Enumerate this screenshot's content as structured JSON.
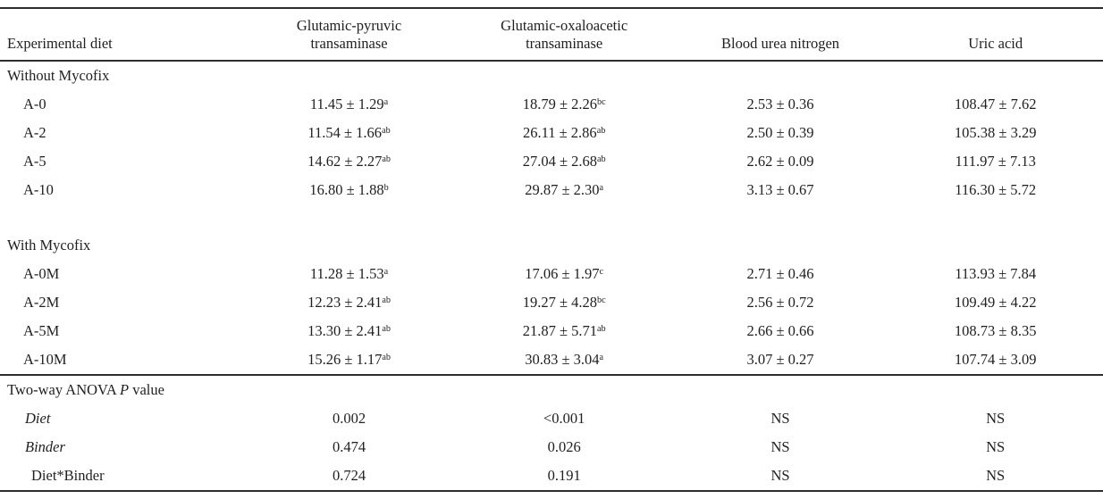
{
  "colors": {
    "background": "#ffffff",
    "text": "#1f1f1f",
    "rule": "#2d2d2d"
  },
  "table": {
    "columns": [
      {
        "id": "diet",
        "lines": [
          "Experimental diet"
        ]
      },
      {
        "id": "gpt",
        "lines": [
          "Glutamic-pyruvic",
          "transaminase"
        ]
      },
      {
        "id": "got",
        "lines": [
          "Glutamic-oxaloacetic",
          "transaminase"
        ]
      },
      {
        "id": "bun",
        "lines": [
          "Blood urea nitrogen"
        ]
      },
      {
        "id": "uric",
        "lines": [
          "Uric acid"
        ]
      }
    ],
    "sections": [
      {
        "label": "Without Mycofix",
        "rows": [
          {
            "diet": "A-0",
            "cells": [
              {
                "value": "11.45 ± 1.29",
                "sup": "a"
              },
              {
                "value": "18.79 ± 2.26",
                "sup": "bc"
              },
              {
                "value": "2.53 ± 0.36",
                "sup": ""
              },
              {
                "value": "108.47 ± 7.62",
                "sup": ""
              }
            ]
          },
          {
            "diet": "A-2",
            "cells": [
              {
                "value": "11.54 ± 1.66",
                "sup": "ab"
              },
              {
                "value": "26.11 ± 2.86",
                "sup": "ab"
              },
              {
                "value": "2.50 ± 0.39",
                "sup": ""
              },
              {
                "value": "105.38 ± 3.29",
                "sup": ""
              }
            ]
          },
          {
            "diet": "A-5",
            "cells": [
              {
                "value": "14.62 ± 2.27",
                "sup": "ab"
              },
              {
                "value": "27.04 ± 2.68",
                "sup": "ab"
              },
              {
                "value": "2.62 ± 0.09",
                "sup": ""
              },
              {
                "value": "111.97 ± 7.13",
                "sup": ""
              }
            ]
          },
          {
            "diet": "A-10",
            "cells": [
              {
                "value": "16.80 ± 1.88",
                "sup": "b"
              },
              {
                "value": "29.87 ± 2.30",
                "sup": "a"
              },
              {
                "value": "3.13 ± 0.67",
                "sup": ""
              },
              {
                "value": "116.30 ± 5.72",
                "sup": ""
              }
            ]
          }
        ]
      },
      {
        "label": "With Mycofix",
        "rows": [
          {
            "diet": "A-0M",
            "cells": [
              {
                "value": "11.28 ± 1.53",
                "sup": "a"
              },
              {
                "value": "17.06 ± 1.97",
                "sup": "c"
              },
              {
                "value": "2.71 ± 0.46",
                "sup": ""
              },
              {
                "value": "113.93 ± 7.84",
                "sup": ""
              }
            ]
          },
          {
            "diet": "A-2M",
            "cells": [
              {
                "value": "12.23 ± 2.41",
                "sup": "ab"
              },
              {
                "value": "19.27 ± 4.28",
                "sup": "bc"
              },
              {
                "value": "2.56 ± 0.72",
                "sup": ""
              },
              {
                "value": "109.49 ± 4.22",
                "sup": ""
              }
            ]
          },
          {
            "diet": "A-5M",
            "cells": [
              {
                "value": "13.30 ± 2.41",
                "sup": "ab"
              },
              {
                "value": "21.87 ± 5.71",
                "sup": "ab"
              },
              {
                "value": "2.66 ± 0.66",
                "sup": ""
              },
              {
                "value": "108.73 ± 8.35",
                "sup": ""
              }
            ]
          },
          {
            "diet": "A-10M",
            "cells": [
              {
                "value": "15.26 ± 1.17",
                "sup": "ab"
              },
              {
                "value": "30.83 ± 3.04",
                "sup": "a"
              },
              {
                "value": "3.07 ± 0.27",
                "sup": ""
              },
              {
                "value": "107.74 ± 3.09",
                "sup": ""
              }
            ]
          }
        ]
      }
    ],
    "anova": {
      "label_prefix": "Two-way ANOVA ",
      "label_italic": "P",
      "label_suffix": " value",
      "rows": [
        {
          "label": "Diet",
          "italic": true,
          "values": [
            "0.002",
            "<0.001",
            "NS",
            "NS"
          ]
        },
        {
          "label": "Binder",
          "italic": true,
          "values": [
            "0.474",
            "0.026",
            "NS",
            "NS"
          ]
        },
        {
          "label": "Diet*Binder",
          "italic": false,
          "values": [
            "0.724",
            "0.191",
            "NS",
            "NS"
          ]
        }
      ]
    }
  }
}
